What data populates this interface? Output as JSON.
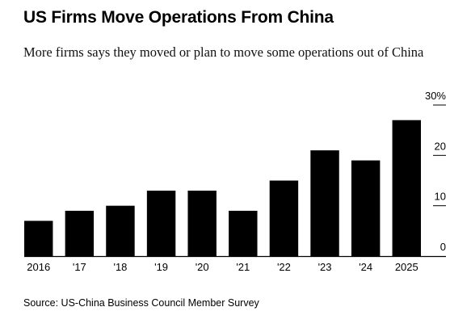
{
  "title": "US Firms Move Operations From China",
  "subtitle": "More firms says they moved or plan to move some operations out of China",
  "source": "Source: US-China Business Council Member Survey",
  "chart_data": {
    "type": "bar",
    "categories": [
      "2016",
      "'17",
      "'18",
      "'19",
      "'20",
      "'21",
      "'22",
      "'23",
      "'24",
      "2025"
    ],
    "values": [
      7,
      9,
      10,
      13,
      13,
      9,
      15,
      21,
      19,
      27
    ],
    "ylim": [
      0,
      30
    ],
    "yticks": [
      0,
      10,
      20,
      30
    ],
    "ytick_labels": [
      "0",
      "10",
      "20",
      "30%"
    ],
    "axis_position": "right",
    "bar_color": "#000000"
  }
}
